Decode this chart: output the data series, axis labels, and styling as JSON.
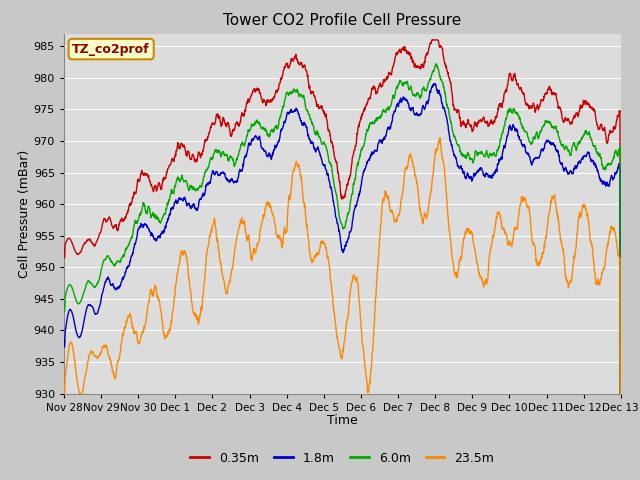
{
  "title": "Tower CO2 Profile Cell Pressure",
  "xlabel": "Time",
  "ylabel": "Cell Pressure (mBar)",
  "ylim": [
    930,
    987
  ],
  "yticks": [
    930,
    935,
    940,
    945,
    950,
    955,
    960,
    965,
    970,
    975,
    980,
    985
  ],
  "fig_bg_color": "#c8c8c8",
  "plot_bg_color": "#dcdcdc",
  "grid_color": "#ffffff",
  "legend_label": "TZ_co2prof",
  "series_colors": {
    "0.35m": "#cc0000",
    "1.8m": "#0000cc",
    "6.0m": "#00aa00",
    "23.5m": "#ff8800"
  },
  "series_labels": [
    "0.35m",
    "1.8m",
    "6.0m",
    "23.5m"
  ],
  "total_days": 15.0,
  "n_points": 2000,
  "tick_days": [
    0,
    1,
    2,
    3,
    4,
    5,
    6,
    7,
    8,
    9,
    10,
    11,
    12,
    13,
    14,
    15
  ],
  "tick_labels": [
    "Nov 28",
    "Nov 29",
    "Nov 30",
    "Dec 1",
    "Dec 2",
    "Dec 3",
    "Dec 4",
    "Dec 5",
    "Dec 6",
    "Dec 7",
    "Dec 8",
    "Dec 9",
    "Dec 10",
    "Dec 11",
    "Dec 12",
    "Dec 13"
  ],
  "figsize": [
    6.4,
    4.8
  ],
  "dpi": 100
}
